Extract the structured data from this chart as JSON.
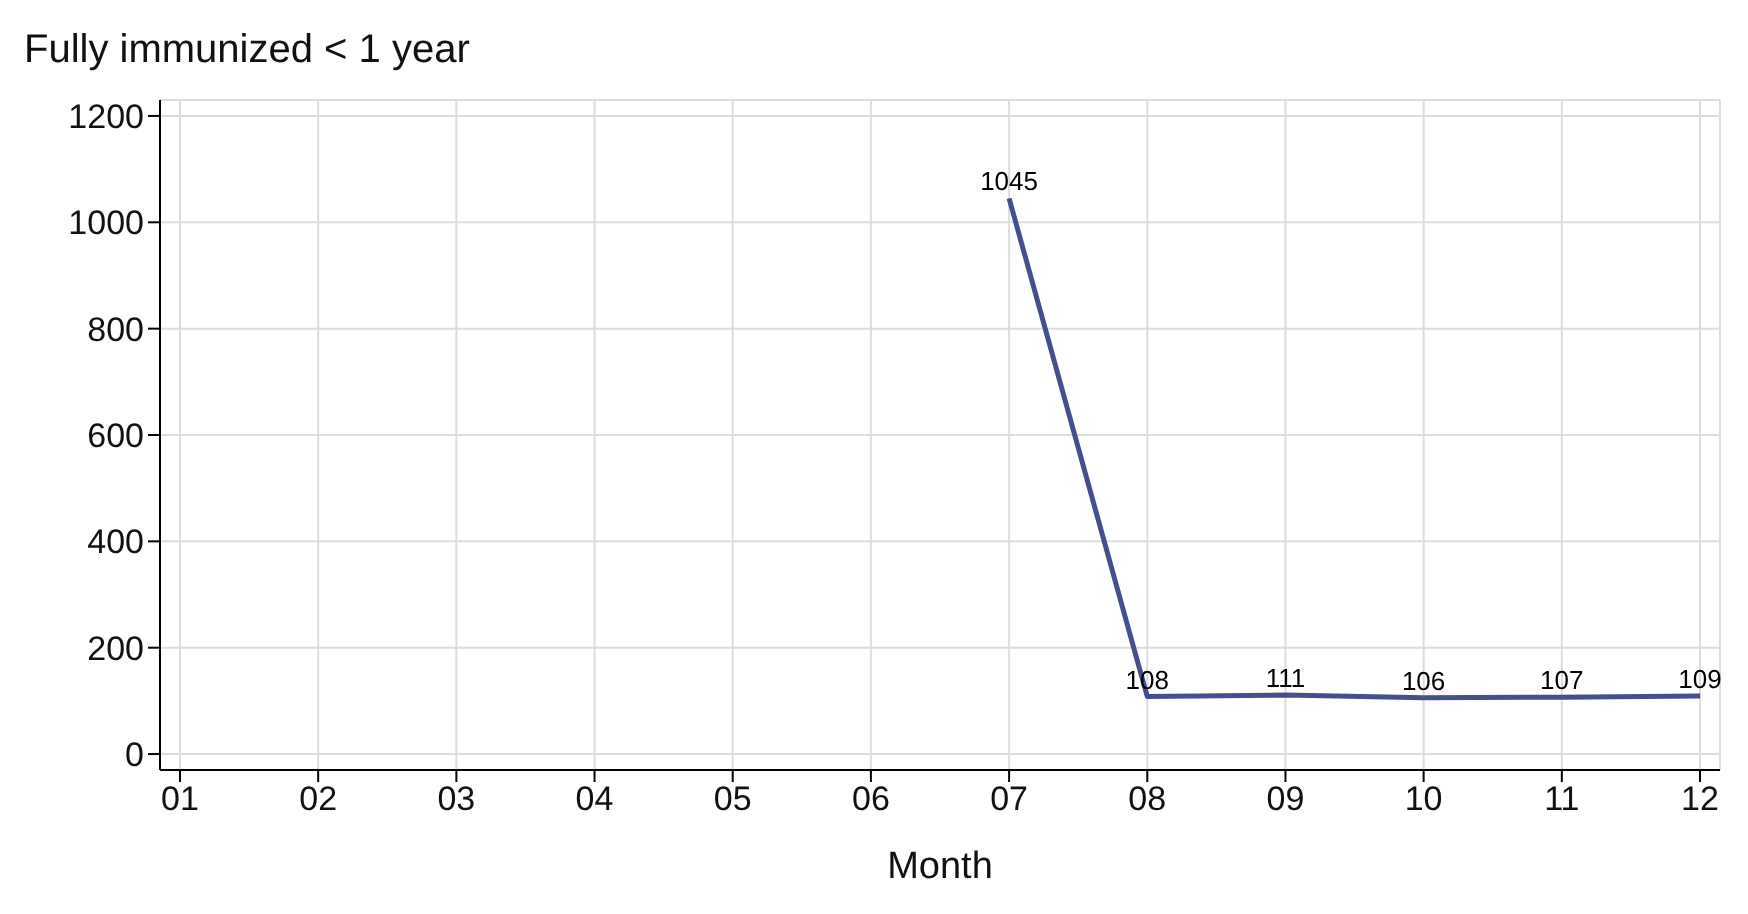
{
  "chart_data": {
    "type": "line",
    "title": "Fully immunized < 1 year",
    "xlabel": "Month",
    "categories": [
      "01",
      "02",
      "03",
      "04",
      "05",
      "06",
      "07",
      "08",
      "09",
      "10",
      "11",
      "12"
    ],
    "series": [
      {
        "color": "#44508c",
        "values": [
          null,
          null,
          null,
          null,
          null,
          null,
          1045,
          108,
          111,
          106,
          107,
          109
        ]
      }
    ],
    "ylim": [
      -30,
      1230
    ],
    "yticks": [
      0,
      200,
      400,
      600,
      800,
      1000,
      1200
    ],
    "grid": true,
    "data_labels": true
  }
}
